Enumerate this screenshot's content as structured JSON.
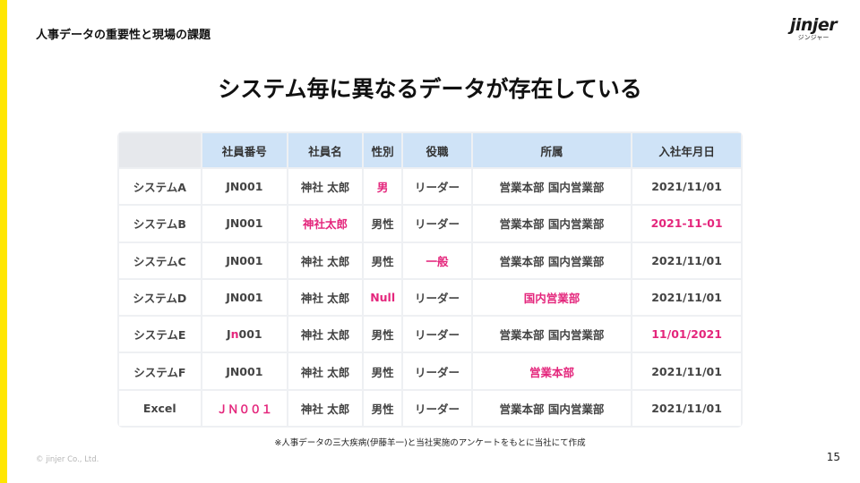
{
  "header": {
    "section_title": "人事データの重要性と現場の課題"
  },
  "logo": {
    "word": "jinjer",
    "kana": "ジンジャー"
  },
  "slide": {
    "headline": "システム毎に異なるデータが存在している"
  },
  "table": {
    "columns": [
      "",
      "社員番号",
      "社員名",
      "性別",
      "役職",
      "所属",
      "入社年月日"
    ],
    "rows": [
      {
        "system": "システムA",
        "cells": [
          {
            "text": "JN001"
          },
          {
            "text": "神社 太郎"
          },
          {
            "text": "男",
            "highlight": true
          },
          {
            "text": "リーダー"
          },
          {
            "text": "営業本部 国内営業部"
          },
          {
            "text": "2021/11/01"
          }
        ]
      },
      {
        "system": "システムB",
        "cells": [
          {
            "text": "JN001"
          },
          {
            "text": "神社太郎",
            "highlight": true
          },
          {
            "text": "男性"
          },
          {
            "text": "リーダー"
          },
          {
            "text": "営業本部 国内営業部"
          },
          {
            "text": "2021-11-01",
            "highlight": true
          }
        ]
      },
      {
        "system": "システムC",
        "cells": [
          {
            "text": "JN001"
          },
          {
            "text": "神社 太郎"
          },
          {
            "text": "男性"
          },
          {
            "text": "一般",
            "highlight": true
          },
          {
            "text": "営業本部 国内営業部"
          },
          {
            "text": "2021/11/01"
          }
        ]
      },
      {
        "system": "システムD",
        "cells": [
          {
            "text": "JN001"
          },
          {
            "text": "神社 太郎"
          },
          {
            "text": "Null",
            "highlight": true
          },
          {
            "text": "リーダー"
          },
          {
            "text": "国内営業部",
            "highlight": true
          },
          {
            "text": "2021/11/01"
          }
        ]
      },
      {
        "system": "システムE",
        "cells": [
          {
            "parts": [
              {
                "text": "J"
              },
              {
                "text": "n",
                "highlight": true
              },
              {
                "text": "001"
              }
            ]
          },
          {
            "text": "神社 太郎"
          },
          {
            "text": "男性"
          },
          {
            "text": "リーダー"
          },
          {
            "text": "営業本部 国内営業部"
          },
          {
            "text": "11/01/2021",
            "highlight": true
          }
        ]
      },
      {
        "system": "システムF",
        "cells": [
          {
            "text": "JN001"
          },
          {
            "text": "神社 太郎"
          },
          {
            "text": "男性"
          },
          {
            "text": "リーダー"
          },
          {
            "text": "営業本部",
            "highlight": true
          },
          {
            "text": "2021/11/01"
          }
        ]
      },
      {
        "system": "Excel",
        "cells": [
          {
            "text": "ＪＮ００１",
            "highlight": true
          },
          {
            "text": "神社 太郎"
          },
          {
            "text": "男性"
          },
          {
            "text": "リーダー"
          },
          {
            "text": "営業本部 国内営業部"
          },
          {
            "text": "2021/11/01"
          }
        ]
      }
    ]
  },
  "footnote": "※人事データの三大疾病(伊藤羊一)と当社実施のアンケートをもとに当社にて作成",
  "footer": {
    "copyright": "© jinjer Co., Ltd.",
    "page_number": "15"
  },
  "colors": {
    "accent": "#ffe600",
    "highlight": "#e4267c",
    "header_cell": "#cfe3f7"
  }
}
